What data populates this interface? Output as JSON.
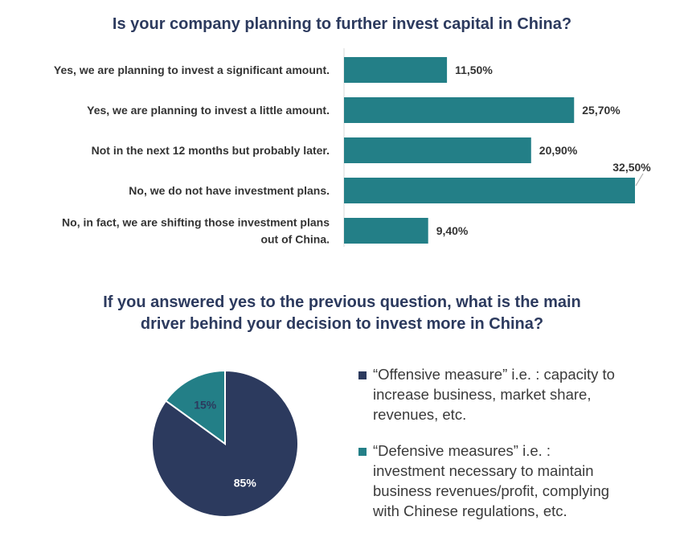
{
  "chart_data": [
    {
      "type": "bar",
      "orientation": "horizontal",
      "title": "Is your company planning to further invest capital in China?",
      "categories": [
        [
          "Yes, we are planning to invest a significant amount."
        ],
        [
          "Yes, we are planning to invest a little amount."
        ],
        [
          "Not in the next 12 months but probably later."
        ],
        [
          "No, we do not have investment plans."
        ],
        [
          "No, in fact, we are shifting those investment plans",
          "out of China."
        ]
      ],
      "values": [
        11.5,
        25.7,
        20.9,
        32.5,
        9.4
      ],
      "value_labels": [
        "11,50%",
        "25,70%",
        "20,90%",
        "32,50%",
        "9,40%"
      ],
      "xlim": [
        0,
        32.5
      ],
      "grid": false,
      "color": "#237f87"
    },
    {
      "type": "pie",
      "title": "If you answered yes to the previous question, what is the main driver behind your decision to invest more in China?",
      "title_lines": [
        "If you answered yes to the previous question, what is the main",
        "driver behind your decision to invest more in China?"
      ],
      "slices": [
        {
          "value": 85,
          "label": "85%",
          "color": "#2c3a5e",
          "legend_lines": [
            "“Offensive measure” i.e. : capacity to",
            "increase business, market share,",
            "revenues, etc."
          ]
        },
        {
          "value": 15,
          "label": "15%",
          "color": "#237f87",
          "legend_lines": [
            "“Defensive measures” i.e. :",
            "investment necessary to maintain",
            "business revenues/profit, complying",
            "with Chinese regulations, etc."
          ]
        }
      ],
      "legend_position": "right"
    }
  ]
}
